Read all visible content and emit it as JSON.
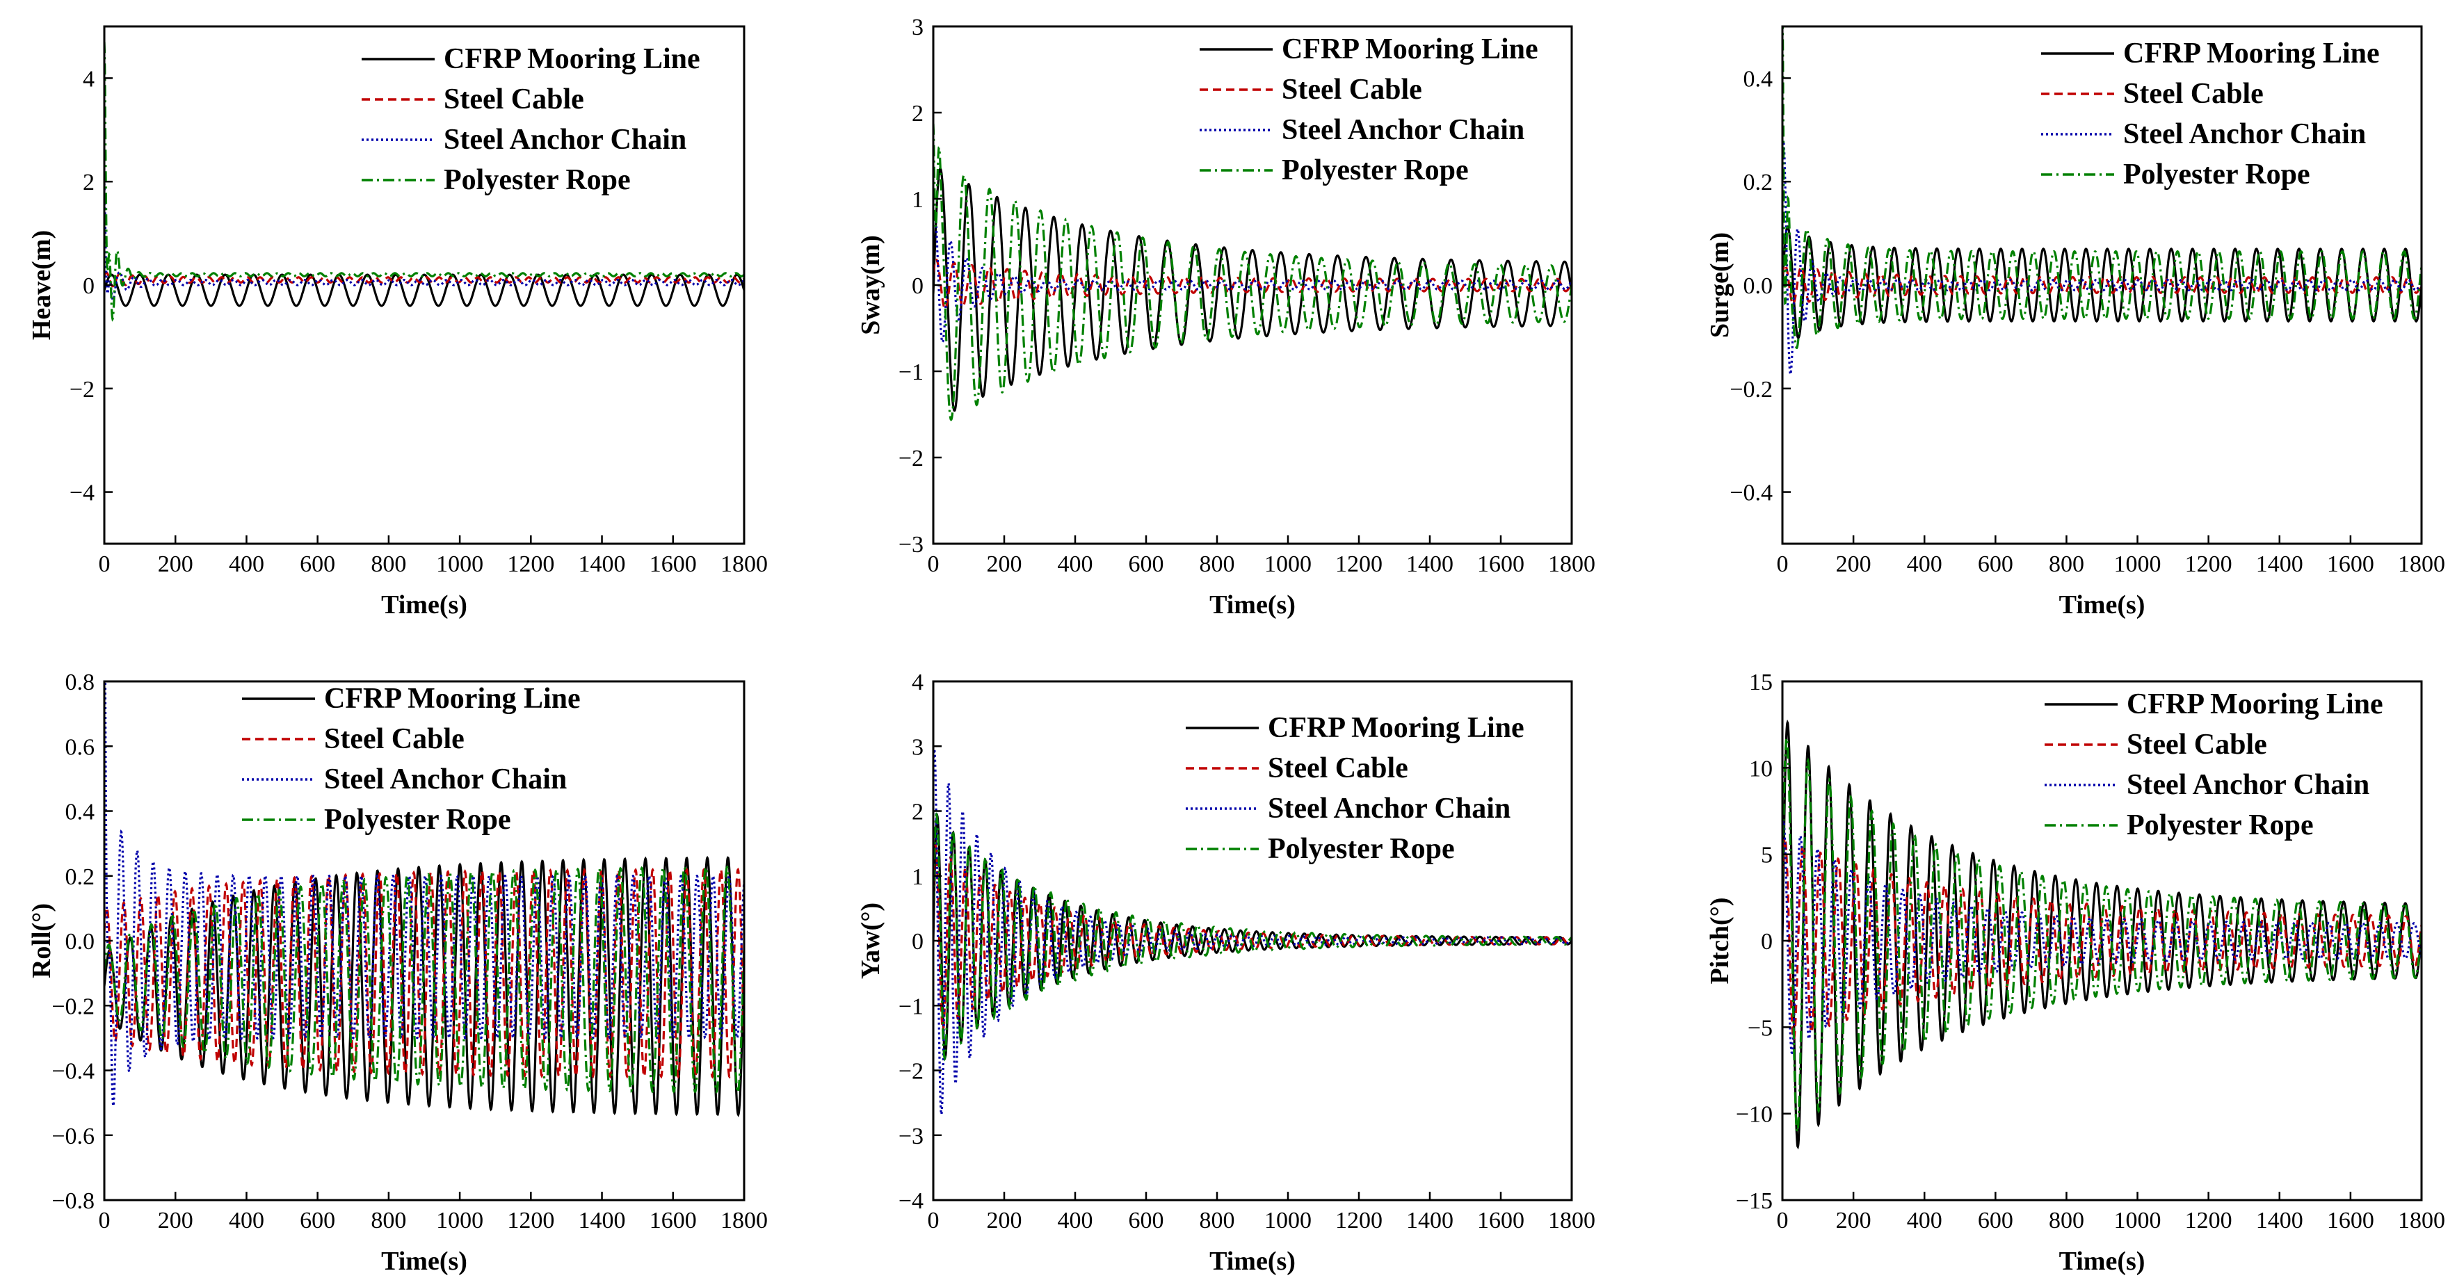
{
  "figure": "Free-decay time histories of six motions for four mooring line materials",
  "legend": [
    {
      "name": "CFRP Mooring Line",
      "color": "#000000",
      "dash": "solid"
    },
    {
      "name": "Steel Cable",
      "color": "#c00000",
      "dash": "dash"
    },
    {
      "name": "Steel Anchor Chain",
      "color": "#0000aa",
      "dash": "dot"
    },
    {
      "name": "Polyester Rope",
      "color": "#008000",
      "dash": "dashdot"
    }
  ],
  "chart_data": [
    {
      "id": "heave",
      "type": "line",
      "title": "",
      "xlabel": "Time(s)",
      "ylabel": "Heave(m)",
      "xlim": [
        0,
        1800
      ],
      "ylim": [
        -5,
        5
      ],
      "xticks": [
        0,
        200,
        400,
        600,
        800,
        1000,
        1200,
        1400,
        1600,
        1800
      ],
      "yticks": [
        -4,
        -2,
        0,
        2,
        4
      ],
      "ytick_labels": [
        "−4",
        "−2",
        "0",
        "2",
        "4"
      ],
      "legend_position": "top-right",
      "series": [
        {
          "name": "CFRP Mooring Line",
          "period": 80,
          "offset": -0.1,
          "amp0": 0.3,
          "amp_ss": 0.3,
          "tau": 200,
          "phase": 0,
          "spike": 0
        },
        {
          "name": "Steel Cable",
          "period": 36,
          "offset": 0.1,
          "amp0": 0.15,
          "amp_ss": 0.05,
          "tau": 80,
          "phase": 0.5,
          "spike": 0
        },
        {
          "name": "Steel Anchor Chain",
          "period": 40,
          "offset": 0.05,
          "amp0": 0.5,
          "amp_ss": 0.05,
          "tau": 40,
          "phase": 1,
          "spike": 1.5
        },
        {
          "name": "Polyester Rope",
          "period": 30,
          "offset": 0.2,
          "amp0": 2.5,
          "amp_ss": 0.03,
          "tau": 20,
          "phase": 0,
          "spike": 4.5
        }
      ]
    },
    {
      "id": "sway",
      "type": "line",
      "title": "",
      "xlabel": "Time(s)",
      "ylabel": "Sway(m)",
      "xlim": [
        0,
        1800
      ],
      "ylim": [
        -3,
        3
      ],
      "xticks": [
        0,
        200,
        400,
        600,
        800,
        1000,
        1200,
        1400,
        1600,
        1800
      ],
      "yticks": [
        -3,
        -2,
        -1,
        0,
        1,
        2,
        3
      ],
      "ytick_labels": [
        "−3",
        "−2",
        "−1",
        "0",
        "1",
        "2",
        "3"
      ],
      "legend_position": "top-right",
      "series": [
        {
          "name": "CFRP Mooring Line",
          "period": 80,
          "offset": -0.1,
          "amp0": 1.5,
          "amp_ss": 0.35,
          "tau": 450,
          "phase": 0,
          "spike": 0
        },
        {
          "name": "Steel Cable",
          "period": 50,
          "offset": 0.0,
          "amp0": 0.3,
          "amp_ss": 0.07,
          "tau": 300,
          "phase": 0.5,
          "spike": 0
        },
        {
          "name": "Steel Anchor Chain",
          "period": 45,
          "offset": 0.0,
          "amp0": 0.9,
          "amp_ss": 0.05,
          "tau": 80,
          "phase": 1,
          "spike": 0
        },
        {
          "name": "Polyester Rope",
          "period": 72,
          "offset": -0.1,
          "amp0": 1.6,
          "amp_ss": 0.3,
          "tau": 450,
          "phase": 0.3,
          "spike": 1.5
        }
      ]
    },
    {
      "id": "surge",
      "type": "line",
      "title": "",
      "xlabel": "Time(s)",
      "ylabel": "Surge(m)",
      "xlim": [
        0,
        1800
      ],
      "ylim": [
        -0.5,
        0.5
      ],
      "xticks": [
        0,
        200,
        400,
        600,
        800,
        1000,
        1200,
        1400,
        1600,
        1800
      ],
      "yticks": [
        -0.4,
        -0.2,
        0.0,
        0.2,
        0.4
      ],
      "ytick_labels": [
        "−0.4",
        "−0.2",
        "0.0",
        "0.2",
        "0.4"
      ],
      "legend_position": "top-right",
      "series": [
        {
          "name": "CFRP Mooring Line",
          "period": 60,
          "offset": 0.0,
          "amp0": 0.12,
          "amp_ss": 0.07,
          "tau": 100,
          "phase": 0,
          "spike": 0
        },
        {
          "name": "Steel Cable",
          "period": 45,
          "offset": 0.0,
          "amp0": 0.04,
          "amp_ss": 0.015,
          "tau": 200,
          "phase": 0.5,
          "spike": 0
        },
        {
          "name": "Steel Anchor Chain",
          "period": 40,
          "offset": 0.0,
          "amp0": 0.3,
          "amp_ss": 0.01,
          "tau": 40,
          "phase": 1,
          "spike": 0
        },
        {
          "name": "Polyester Rope",
          "period": 58,
          "offset": 0.0,
          "amp0": 0.15,
          "amp_ss": 0.065,
          "tau": 100,
          "phase": 0.4,
          "spike": 0.5
        }
      ]
    },
    {
      "id": "roll",
      "type": "line",
      "title": "",
      "xlabel": "Time(s)",
      "ylabel": "Roll(°)",
      "xlim": [
        0,
        1800
      ],
      "ylim": [
        -0.8,
        0.8
      ],
      "xticks": [
        0,
        200,
        400,
        600,
        800,
        1000,
        1200,
        1400,
        1600,
        1800
      ],
      "yticks": [
        -0.8,
        -0.6,
        -0.4,
        -0.2,
        0.0,
        0.2,
        0.4,
        0.6,
        0.8
      ],
      "ytick_labels": [
        "−0.8",
        "−0.6",
        "−0.4",
        "−0.2",
        "0.0",
        "0.2",
        "0.4",
        "0.6",
        "0.8"
      ],
      "legend_position": "top-right",
      "series": [
        {
          "name": "CFRP Mooring Line",
          "period": 58,
          "offset": -0.14,
          "amp0": 0.1,
          "amp_ss": 0.4,
          "tau": -400,
          "phase": 0,
          "spike": 0
        },
        {
          "name": "Steel Cable",
          "period": 48,
          "offset": -0.1,
          "amp0": 0.2,
          "amp_ss": 0.32,
          "tau": -350,
          "phase": 0.7,
          "spike": 0
        },
        {
          "name": "Steel Anchor Chain",
          "period": 45,
          "offset": -0.05,
          "amp0": 0.5,
          "amp_ss": 0.25,
          "tau": 80,
          "phase": 1.2,
          "spike": 0.8
        },
        {
          "name": "Polyester Rope",
          "period": 60,
          "offset": -0.12,
          "amp0": 0.1,
          "amp_ss": 0.35,
          "tau": -400,
          "phase": 0.3,
          "spike": 0
        }
      ]
    },
    {
      "id": "yaw",
      "type": "line",
      "title": "",
      "xlabel": "Time(s)",
      "ylabel": "Yaw(°)",
      "xlim": [
        0,
        1800
      ],
      "ylim": [
        -4,
        4
      ],
      "xticks": [
        0,
        200,
        400,
        600,
        800,
        1000,
        1200,
        1400,
        1600,
        1800
      ],
      "yticks": [
        -4,
        -3,
        -2,
        -1,
        0,
        1,
        2,
        3,
        4
      ],
      "ytick_labels": [
        "−4",
        "−3",
        "−2",
        "−1",
        "0",
        "1",
        "2",
        "3",
        "4"
      ],
      "legend_position": "top-right",
      "series": [
        {
          "name": "CFRP Mooring Line",
          "period": 45,
          "offset": 0.0,
          "amp0": 2.0,
          "amp_ss": 0.05,
          "tau": 300,
          "phase": 0,
          "spike": 0
        },
        {
          "name": "Steel Cable",
          "period": 42,
          "offset": 0.0,
          "amp0": 1.5,
          "amp_ss": 0.05,
          "tau": 300,
          "phase": 0.6,
          "spike": 0
        },
        {
          "name": "Steel Anchor Chain",
          "period": 40,
          "offset": 0.0,
          "amp0": 3.0,
          "amp_ss": 0.05,
          "tau": 200,
          "phase": 1.1,
          "spike": 0
        },
        {
          "name": "Polyester Rope",
          "period": 46,
          "offset": 0.0,
          "amp0": 2.0,
          "amp_ss": 0.05,
          "tau": 320,
          "phase": 0.3,
          "spike": 0
        }
      ]
    },
    {
      "id": "pitch",
      "type": "line",
      "title": "",
      "xlabel": "Time(s)",
      "ylabel": "Pitch(°)",
      "xlim": [
        0,
        1800
      ],
      "ylim": [
        -15,
        15
      ],
      "xticks": [
        0,
        200,
        400,
        600,
        800,
        1000,
        1200,
        1400,
        1600,
        1800
      ],
      "yticks": [
        -15,
        -10,
        -5,
        0,
        5,
        10,
        15
      ],
      "ytick_labels": [
        "−15",
        "−10",
        "−5",
        "0",
        "5",
        "10",
        "15"
      ],
      "legend_position": "top-right",
      "series": [
        {
          "name": "CFRP Mooring Line",
          "period": 58,
          "offset": 0.0,
          "amp0": 13.0,
          "amp_ss": 2.0,
          "tau": 420,
          "phase": 0,
          "spike": 0
        },
        {
          "name": "Steel Cable",
          "period": 50,
          "offset": 0.0,
          "amp0": 6.0,
          "amp_ss": 1.3,
          "tau": 500,
          "phase": 0.7,
          "spike": 0
        },
        {
          "name": "Steel Anchor Chain",
          "period": 48,
          "offset": 0.0,
          "amp0": 7.0,
          "amp_ss": 1.0,
          "tau": 300,
          "phase": 1.2,
          "spike": 0
        },
        {
          "name": "Polyester Rope",
          "period": 60,
          "offset": 0.0,
          "amp0": 12.0,
          "amp_ss": 2.0,
          "tau": 420,
          "phase": 0.3,
          "spike": 0
        }
      ]
    }
  ]
}
